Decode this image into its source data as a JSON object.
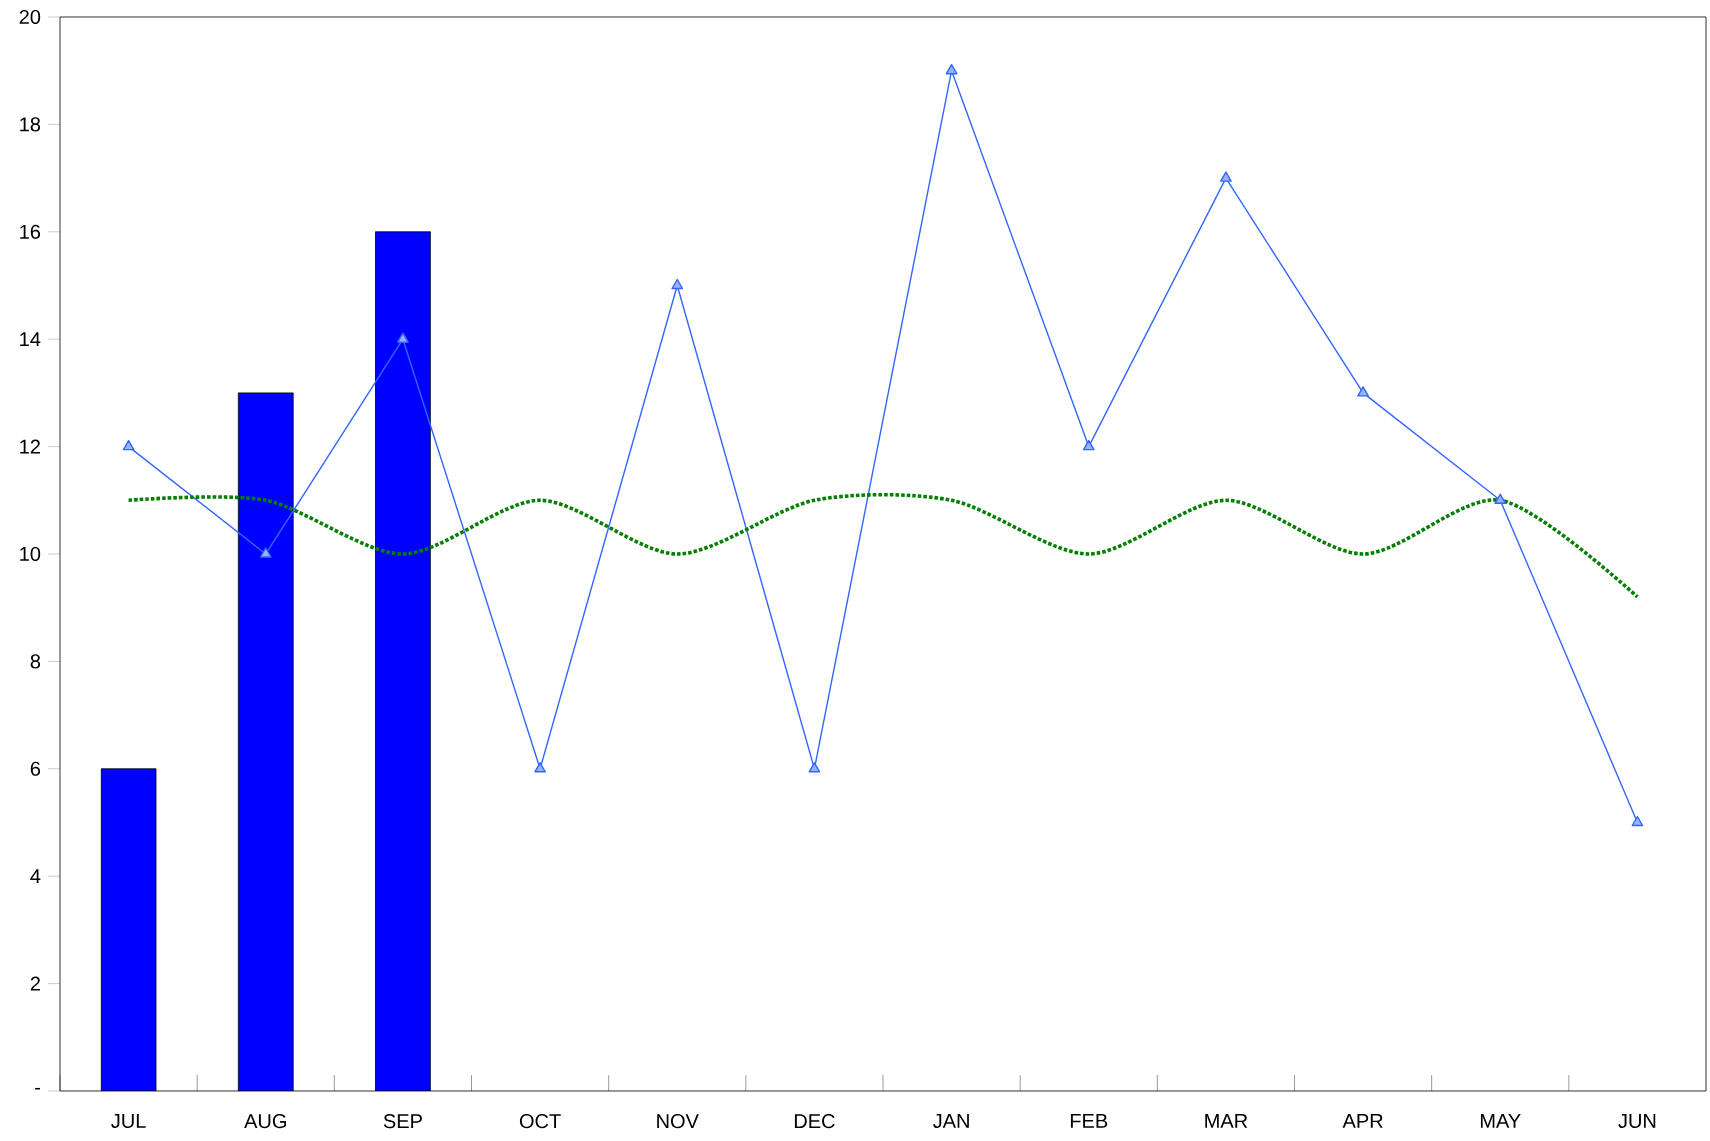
{
  "chart_data": {
    "type": "bar",
    "categories": [
      "JUL",
      "AUG",
      "SEP",
      "OCT",
      "NOV",
      "DEC",
      "JAN",
      "FEB",
      "MAR",
      "APR",
      "MAY",
      "JUN"
    ],
    "ylim": [
      0,
      20
    ],
    "yticks": [
      {
        "value": 0,
        "label": "-"
      },
      2,
      4,
      6,
      8,
      10,
      12,
      14,
      16,
      18,
      20
    ],
    "series": [
      {
        "color": "#0000ff",
        "values": [
          6,
          13,
          16,
          null,
          null,
          null,
          null,
          null,
          null,
          null,
          null,
          null
        ]
      },
      {
        "type": "line",
        "color": "#3366ff",
        "marker": "triangle",
        "line_style": "solid",
        "values": [
          12,
          10,
          14,
          6,
          15,
          6,
          19,
          12,
          17,
          13,
          11,
          5
        ]
      },
      {
        "type": "line",
        "color": "#008000",
        "marker": "none",
        "line_style": "dotted",
        "values": [
          11,
          11,
          10,
          11,
          10,
          11,
          11,
          10,
          11,
          10,
          11,
          9.2
        ]
      }
    ]
  }
}
